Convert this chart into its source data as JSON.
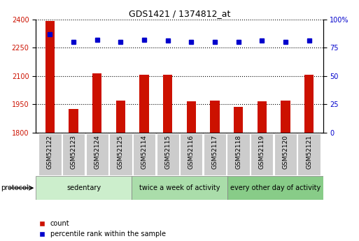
{
  "title": "GDS1421 / 1374812_at",
  "samples": [
    "GSM52122",
    "GSM52123",
    "GSM52124",
    "GSM52125",
    "GSM52114",
    "GSM52115",
    "GSM52116",
    "GSM52117",
    "GSM52118",
    "GSM52119",
    "GSM52120",
    "GSM52121"
  ],
  "counts": [
    2390,
    1925,
    2115,
    1970,
    2108,
    2105,
    1965,
    1970,
    1935,
    1965,
    1968,
    2108
  ],
  "percentiles": [
    87,
    80,
    82,
    80,
    82,
    81,
    80,
    80,
    80,
    81,
    80,
    81
  ],
  "ylim_left": [
    1800,
    2400
  ],
  "ylim_right": [
    0,
    100
  ],
  "yticks_left": [
    1800,
    1950,
    2100,
    2250,
    2400
  ],
  "yticks_right": [
    0,
    25,
    50,
    75,
    100
  ],
  "ytick_right_labels": [
    "0",
    "25",
    "50",
    "75",
    "100%"
  ],
  "bar_color": "#cc1100",
  "dot_color": "#0000cc",
  "groups": [
    {
      "label": "sedentary",
      "start": 0,
      "end": 4,
      "color": "#cceecc"
    },
    {
      "label": "twice a week of activity",
      "start": 4,
      "end": 8,
      "color": "#aaddaa"
    },
    {
      "label": "every other day of activity",
      "start": 8,
      "end": 12,
      "color": "#88cc88"
    }
  ],
  "protocol_label": "protocol",
  "legend_count": "count",
  "legend_percentile": "percentile rank within the sample",
  "bg_color": "#ffffff",
  "tick_bg": "#cccccc",
  "bar_width": 0.4
}
